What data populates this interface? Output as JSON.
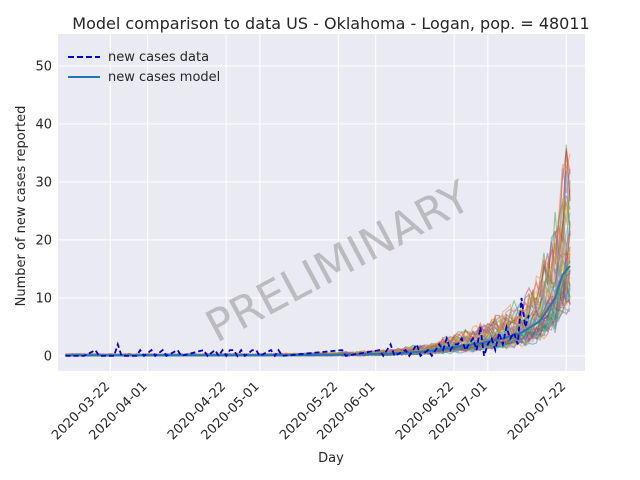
{
  "chart_data": {
    "type": "line",
    "title": "Model comparison to data US - Oklahoma - Logan, pop. = 48011",
    "xlabel": "Day",
    "ylabel": "Number of new cases reported",
    "x_range": [
      "2020-03-08",
      "2020-07-27"
    ],
    "ylim": [
      -2.6,
      55.5
    ],
    "x_ticks": [
      "2020-03-22",
      "2020-04-01",
      "2020-04-22",
      "2020-05-01",
      "2020-05-22",
      "2020-06-01",
      "2020-06-22",
      "2020-07-01",
      "2020-07-22"
    ],
    "y_ticks": [
      0,
      10,
      20,
      30,
      40,
      50
    ],
    "grid": true,
    "legend_position": "top-left",
    "watermark": "PRELIMINARY",
    "colors": {
      "background": "#eaeaf2",
      "grid": "#ffffff",
      "data": "#0000cc",
      "model": "#1f77b4"
    },
    "series": [
      {
        "name": "new cases data",
        "style": "dashed",
        "points": [
          [
            "2020-03-10",
            0
          ],
          [
            "2020-03-15",
            0
          ],
          [
            "2020-03-18",
            1
          ],
          [
            "2020-03-19",
            0
          ],
          [
            "2020-03-23",
            0
          ],
          [
            "2020-03-24",
            2
          ],
          [
            "2020-03-25",
            0
          ],
          [
            "2020-03-29",
            0
          ],
          [
            "2020-03-30",
            1
          ],
          [
            "2020-03-31",
            0
          ],
          [
            "2020-04-02",
            1
          ],
          [
            "2020-04-03",
            0
          ],
          [
            "2020-04-05",
            1
          ],
          [
            "2020-04-06",
            0
          ],
          [
            "2020-04-09",
            1
          ],
          [
            "2020-04-10",
            0
          ],
          [
            "2020-04-16",
            1
          ],
          [
            "2020-04-17",
            0
          ],
          [
            "2020-04-19",
            1
          ],
          [
            "2020-04-20",
            0
          ],
          [
            "2020-04-21",
            1
          ],
          [
            "2020-04-22",
            0
          ],
          [
            "2020-04-23",
            1
          ],
          [
            "2020-04-24",
            1
          ],
          [
            "2020-04-25",
            0
          ],
          [
            "2020-04-26",
            1
          ],
          [
            "2020-04-27",
            0
          ],
          [
            "2020-04-29",
            1
          ],
          [
            "2020-04-30",
            1
          ],
          [
            "2020-05-01",
            0
          ],
          [
            "2020-05-04",
            1
          ],
          [
            "2020-05-05",
            0
          ],
          [
            "2020-05-06",
            1
          ],
          [
            "2020-05-07",
            0
          ],
          [
            "2020-05-23",
            1
          ],
          [
            "2020-05-24",
            0
          ],
          [
            "2020-06-02",
            1
          ],
          [
            "2020-06-03",
            0
          ],
          [
            "2020-06-05",
            2
          ],
          [
            "2020-06-06",
            0
          ],
          [
            "2020-06-09",
            1
          ],
          [
            "2020-06-10",
            0
          ],
          [
            "2020-06-12",
            2
          ],
          [
            "2020-06-13",
            0
          ],
          [
            "2020-06-15",
            1
          ],
          [
            "2020-06-16",
            0
          ],
          [
            "2020-06-18",
            2
          ],
          [
            "2020-06-19",
            1
          ],
          [
            "2020-06-20",
            3
          ],
          [
            "2020-06-21",
            1
          ],
          [
            "2020-06-22",
            2
          ],
          [
            "2020-06-23",
            2
          ],
          [
            "2020-06-24",
            3
          ],
          [
            "2020-06-25",
            1
          ],
          [
            "2020-06-26",
            2
          ],
          [
            "2020-06-27",
            3
          ],
          [
            "2020-06-28",
            1
          ],
          [
            "2020-06-29",
            5
          ],
          [
            "2020-06-30",
            0
          ],
          [
            "2020-07-01",
            2
          ],
          [
            "2020-07-02",
            3
          ],
          [
            "2020-07-03",
            1
          ],
          [
            "2020-07-04",
            4
          ],
          [
            "2020-07-05",
            2
          ],
          [
            "2020-07-06",
            5
          ],
          [
            "2020-07-07",
            3
          ],
          [
            "2020-07-08",
            4
          ],
          [
            "2020-07-09",
            2
          ],
          [
            "2020-07-10",
            10
          ],
          [
            "2020-07-11",
            5
          ],
          [
            "2020-07-12",
            7
          ]
        ]
      },
      {
        "name": "new cases model",
        "style": "solid",
        "points": [
          [
            "2020-03-10",
            0.1
          ],
          [
            "2020-03-31",
            0.1
          ],
          [
            "2020-04-30",
            0.1
          ],
          [
            "2020-05-20",
            0.2
          ],
          [
            "2020-06-05",
            0.4
          ],
          [
            "2020-06-15",
            0.8
          ],
          [
            "2020-06-22",
            1.5
          ],
          [
            "2020-06-29",
            2.2
          ],
          [
            "2020-07-05",
            3.0
          ],
          [
            "2020-07-10",
            4.0
          ],
          [
            "2020-07-15",
            6.0
          ],
          [
            "2020-07-19",
            10.0
          ],
          [
            "2020-07-21",
            14.0
          ],
          [
            "2020-07-23",
            15.5
          ]
        ]
      }
    ]
  }
}
